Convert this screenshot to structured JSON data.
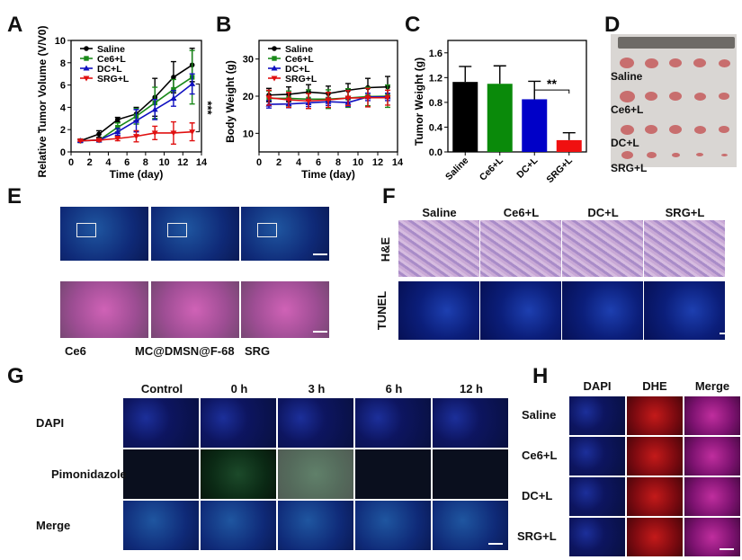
{
  "panels": {
    "A": "A",
    "B": "B",
    "C": "C",
    "D": "D",
    "E": "E",
    "F": "F",
    "G": "G",
    "H": "H"
  },
  "chart_data": [
    {
      "type": "line",
      "panel": "A",
      "xlabel": "Time (day)",
      "ylabel": "Relative Tumor Volume (V/V0)",
      "xlim": [
        0,
        14
      ],
      "ylim": [
        0,
        10
      ],
      "xticks": [
        0,
        2,
        4,
        6,
        8,
        10,
        12,
        14
      ],
      "yticks": [
        0,
        2,
        4,
        6,
        8,
        10
      ],
      "legend": "top-left",
      "annotation": "***",
      "x": [
        1,
        3,
        5,
        7,
        9,
        11,
        13
      ],
      "series": [
        {
          "name": "Saline",
          "color": "#000000",
          "marker": "circle",
          "values": [
            1,
            1.6,
            2.9,
            3.4,
            4.9,
            6.7,
            7.8
          ],
          "errors": [
            0.1,
            0.3,
            0.2,
            0.6,
            1.7,
            1.4,
            1.5
          ]
        },
        {
          "name": "Ce6+L",
          "color": "#1a8a1a",
          "marker": "square",
          "values": [
            1,
            1.05,
            2.2,
            3.2,
            4.4,
            5.6,
            6.7
          ],
          "errors": [
            0.1,
            0.1,
            0.4,
            0.7,
            1.4,
            0.9,
            2.4
          ]
        },
        {
          "name": "DC+L",
          "color": "#1010c0",
          "marker": "triangle-up",
          "values": [
            1,
            1.05,
            1.8,
            2.8,
            3.8,
            4.8,
            6.1
          ],
          "errors": [
            0.1,
            0.1,
            0.3,
            1.0,
            0.9,
            0.7,
            0.9
          ]
        },
        {
          "name": "SRG+L",
          "color": "#e01010",
          "marker": "triangle-down",
          "values": [
            1,
            1.05,
            1.2,
            1.4,
            1.7,
            1.7,
            1.8
          ],
          "errors": [
            0.05,
            0.1,
            0.2,
            0.5,
            0.6,
            1.0,
            0.8
          ]
        }
      ]
    },
    {
      "type": "line",
      "panel": "B",
      "xlabel": "Time (day)",
      "ylabel": "Body Weight (g)",
      "xlim": [
        0,
        14
      ],
      "ylim": [
        5,
        35
      ],
      "xticks": [
        0,
        2,
        4,
        6,
        8,
        10,
        12,
        14
      ],
      "yticks": [
        10,
        20,
        30
      ],
      "legend": "top-left",
      "x": [
        1,
        3,
        5,
        7,
        9,
        11,
        13
      ],
      "series": [
        {
          "name": "Saline",
          "color": "#000000",
          "marker": "circle",
          "values": [
            20.3,
            20.5,
            21.1,
            20.7,
            21.6,
            22.3,
            22.5
          ],
          "errors": [
            1.8,
            2,
            2,
            2,
            1.8,
            2.5,
            2.8
          ]
        },
        {
          "name": "Ce6+L",
          "color": "#1a8a1a",
          "marker": "square",
          "values": [
            19.4,
            19.4,
            19.2,
            19.2,
            19.5,
            19.9,
            20
          ],
          "errors": [
            2,
            2,
            2.5,
            2.5,
            2.5,
            2.5,
            3
          ]
        },
        {
          "name": "DC+L",
          "color": "#1010c0",
          "marker": "triangle-up",
          "values": [
            17.8,
            17.9,
            18.2,
            18.5,
            18.3,
            19.8,
            19.8
          ],
          "errors": [
            1,
            1,
            1,
            1,
            1,
            1,
            1
          ]
        },
        {
          "name": "SRG+L",
          "color": "#e01010",
          "marker": "triangle-down",
          "values": [
            19.6,
            19.0,
            18.7,
            19.0,
            19.5,
            19.6,
            19.6
          ],
          "errors": [
            2,
            2,
            2,
            2,
            2,
            2.5,
            2
          ]
        }
      ]
    },
    {
      "type": "bar",
      "panel": "C",
      "ylabel": "Tumor Weight (g)",
      "ylim": [
        0,
        1.8
      ],
      "yticks": [
        0.0,
        0.4,
        0.8,
        1.2,
        1.6
      ],
      "annotation": "**",
      "categories": [
        "Saline",
        "Ce6+L",
        "DC+L",
        "SRG+L"
      ],
      "values": [
        1.13,
        1.1,
        0.85,
        0.19
      ],
      "errors": [
        0.25,
        0.29,
        0.29,
        0.12
      ],
      "colors": [
        "#000000",
        "#0a8a0a",
        "#0000c8",
        "#f01010"
      ]
    }
  ],
  "D": {
    "groups": [
      "Saline",
      "Ce6+L",
      "DC+L",
      "SRG+L"
    ]
  },
  "E": {
    "labels": [
      "Ce6",
      "MC@DMSN@F-68",
      "SRG"
    ]
  },
  "F": {
    "columns": [
      "Saline",
      "Ce6+L",
      "DC+L",
      "SRG+L"
    ],
    "rows": [
      "H&E",
      "TUNEL"
    ]
  },
  "G": {
    "columns": [
      "Control",
      "0 h",
      "3 h",
      "6 h",
      "12 h"
    ],
    "rows": [
      "DAPI",
      "Pimonidazole",
      "Merge"
    ]
  },
  "H": {
    "columns": [
      "DAPI",
      "DHE",
      "Merge"
    ],
    "rows": [
      "Saline",
      "Ce6+L",
      "DC+L",
      "SRG+L"
    ]
  }
}
